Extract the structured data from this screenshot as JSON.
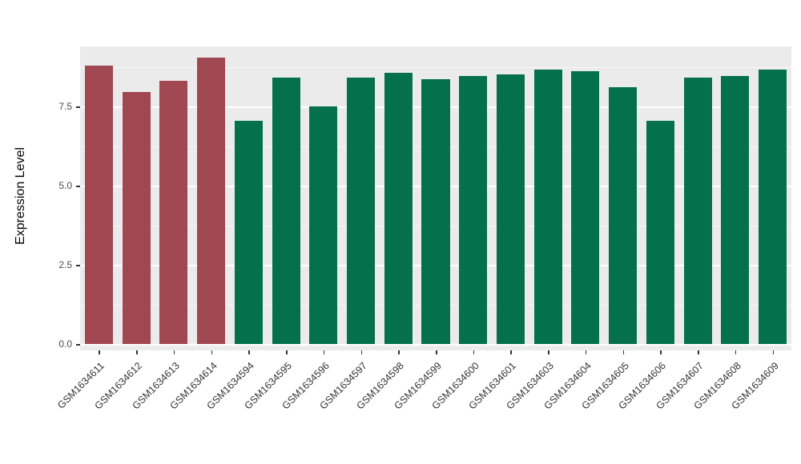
{
  "figure": {
    "background": "#FFFFFF",
    "panel_bg": "#EBEBEB",
    "grid_color": "#FFFFFF"
  },
  "chart_data": {
    "type": "bar",
    "title": "",
    "xlabel": "",
    "ylabel": "Expression Level",
    "ylim": [
      0,
      9.4
    ],
    "grid": true,
    "legend_position": "none",
    "tick_label_angle": 45,
    "ytick_values": [
      0,
      2.5,
      5,
      7.5
    ],
    "ytick_labels": [
      "0.0",
      "2.5",
      "5.0",
      "7.5"
    ],
    "ytick_minor": [
      1.25,
      3.75,
      6.25,
      8.75
    ],
    "group_colors": {
      "red": "#A14752",
      "green": "#05714C"
    },
    "categories": [
      "GSM1634611",
      "GSM1634612",
      "GSM1634613",
      "GSM1634614",
      "GSM1634594",
      "GSM1634595",
      "GSM1634596",
      "GSM1634597",
      "GSM1634598",
      "GSM1634599",
      "GSM1634600",
      "GSM1634601",
      "GSM1634603",
      "GSM1634604",
      "GSM1634605",
      "GSM1634606",
      "GSM1634607",
      "GSM1634608",
      "GSM1634609"
    ],
    "values": [
      8.8,
      7.95,
      8.3,
      9.05,
      7.05,
      8.4,
      7.5,
      8.4,
      8.55,
      8.35,
      8.45,
      8.5,
      8.65,
      8.6,
      8.1,
      7.05,
      8.4,
      8.45,
      8.65
    ],
    "groups": [
      "red",
      "red",
      "red",
      "red",
      "green",
      "green",
      "green",
      "green",
      "green",
      "green",
      "green",
      "green",
      "green",
      "green",
      "green",
      "green",
      "green",
      "green",
      "green"
    ]
  }
}
